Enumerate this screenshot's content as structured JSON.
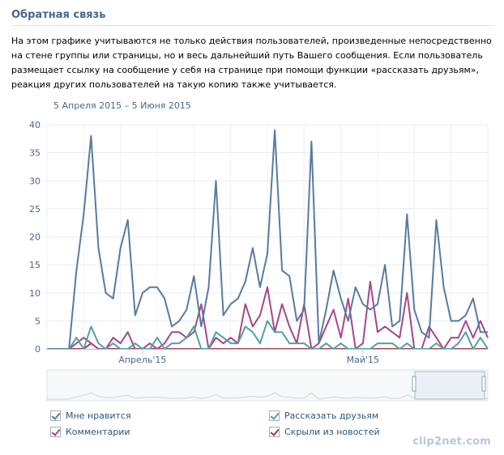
{
  "header": {
    "title": "Обратная связь"
  },
  "description": "На этом графике учитываются не только действия пользователей, произведенные непосредственно на стене группы или страницы, но и весь дальнейший путь Вашего сообщения. Если пользователь размещает ссылку на сообщение у себя на странице при помощи функции «рассказать друзьям», реакция других пользователей на такую копию также учитывается.",
  "period": "5 Апреля 2015 – 5 Июня 2015",
  "legend": [
    {
      "label": "Мне нравится",
      "color": "#587ba0"
    },
    {
      "label": "Рассказать друзьям",
      "color": "#4ea3a1"
    },
    {
      "label": "Комментарии",
      "color": "#a6468a"
    },
    {
      "label": "Скрыли из новостей",
      "color": "#a33b3b"
    }
  ],
  "watermark": "clip2net.com",
  "chart_data": {
    "type": "line",
    "title": "",
    "xlabel": "",
    "ylabel": "",
    "ylim": [
      0,
      40
    ],
    "yticks": [
      "0",
      "5",
      "10",
      "15",
      "20",
      "25",
      "30",
      "35",
      "40"
    ],
    "xticks": [
      {
        "label": "Апрель'15",
        "index": 13
      },
      {
        "label": "Май'15",
        "index": 43
      }
    ],
    "series": [
      {
        "name": "Мне нравится",
        "color": "#587ba0",
        "values": [
          0,
          0,
          0,
          0,
          14,
          24,
          38,
          18,
          10,
          9,
          18,
          23,
          6,
          10,
          11,
          11,
          9,
          4,
          5,
          7,
          13,
          4,
          11,
          30,
          6,
          8,
          9,
          12,
          18,
          11,
          17,
          39,
          14,
          13,
          5,
          7,
          37,
          1,
          7,
          14,
          9,
          5,
          11,
          8,
          7,
          8,
          15,
          4,
          5,
          24,
          7,
          3,
          2,
          23,
          11,
          5,
          5,
          6,
          9,
          3,
          3
        ]
      },
      {
        "name": "Рассказать друзьям",
        "color": "#4ea3a1",
        "values": [
          0,
          0,
          0,
          0,
          2,
          0,
          4,
          1,
          0,
          1,
          0,
          0,
          1,
          0,
          0,
          2,
          0,
          1,
          1,
          2,
          4,
          0,
          0,
          3,
          2,
          1,
          1,
          4,
          3,
          1,
          5,
          3,
          3,
          1,
          1,
          1,
          0,
          0,
          1,
          0,
          1,
          0,
          0,
          0,
          0,
          1,
          1,
          1,
          0,
          1,
          0,
          0,
          0,
          1,
          0,
          0,
          1,
          3,
          0,
          2,
          0
        ]
      },
      {
        "name": "Комментарии",
        "color": "#a6468a",
        "values": [
          0,
          0,
          0,
          0,
          1,
          2,
          1,
          0,
          0,
          2,
          1,
          3,
          0,
          0,
          1,
          0,
          1,
          3,
          3,
          2,
          3,
          8,
          0,
          2,
          1,
          2,
          1,
          8,
          4,
          6,
          11,
          3,
          8,
          4,
          1,
          8,
          0,
          1,
          4,
          7,
          2,
          9,
          0,
          1,
          12,
          3,
          4,
          3,
          2,
          10,
          0,
          0,
          4,
          2,
          0,
          2,
          2,
          5,
          2,
          5,
          2
        ]
      },
      {
        "name": "Скрыли из новостей",
        "color": "#a33b3b",
        "values": [
          0,
          0,
          0,
          0,
          0,
          0,
          1,
          0,
          0,
          0,
          0,
          0,
          0,
          0,
          0,
          0,
          0,
          0,
          0,
          0,
          0,
          0,
          0,
          0,
          0,
          0,
          0,
          0,
          0,
          0,
          0,
          0,
          0,
          0,
          0,
          0,
          0,
          0,
          0,
          0,
          0,
          0,
          0,
          0,
          0,
          0,
          0,
          0,
          0,
          0,
          0,
          0,
          0,
          0,
          0,
          0,
          0,
          0,
          0,
          0,
          0
        ]
      }
    ]
  }
}
